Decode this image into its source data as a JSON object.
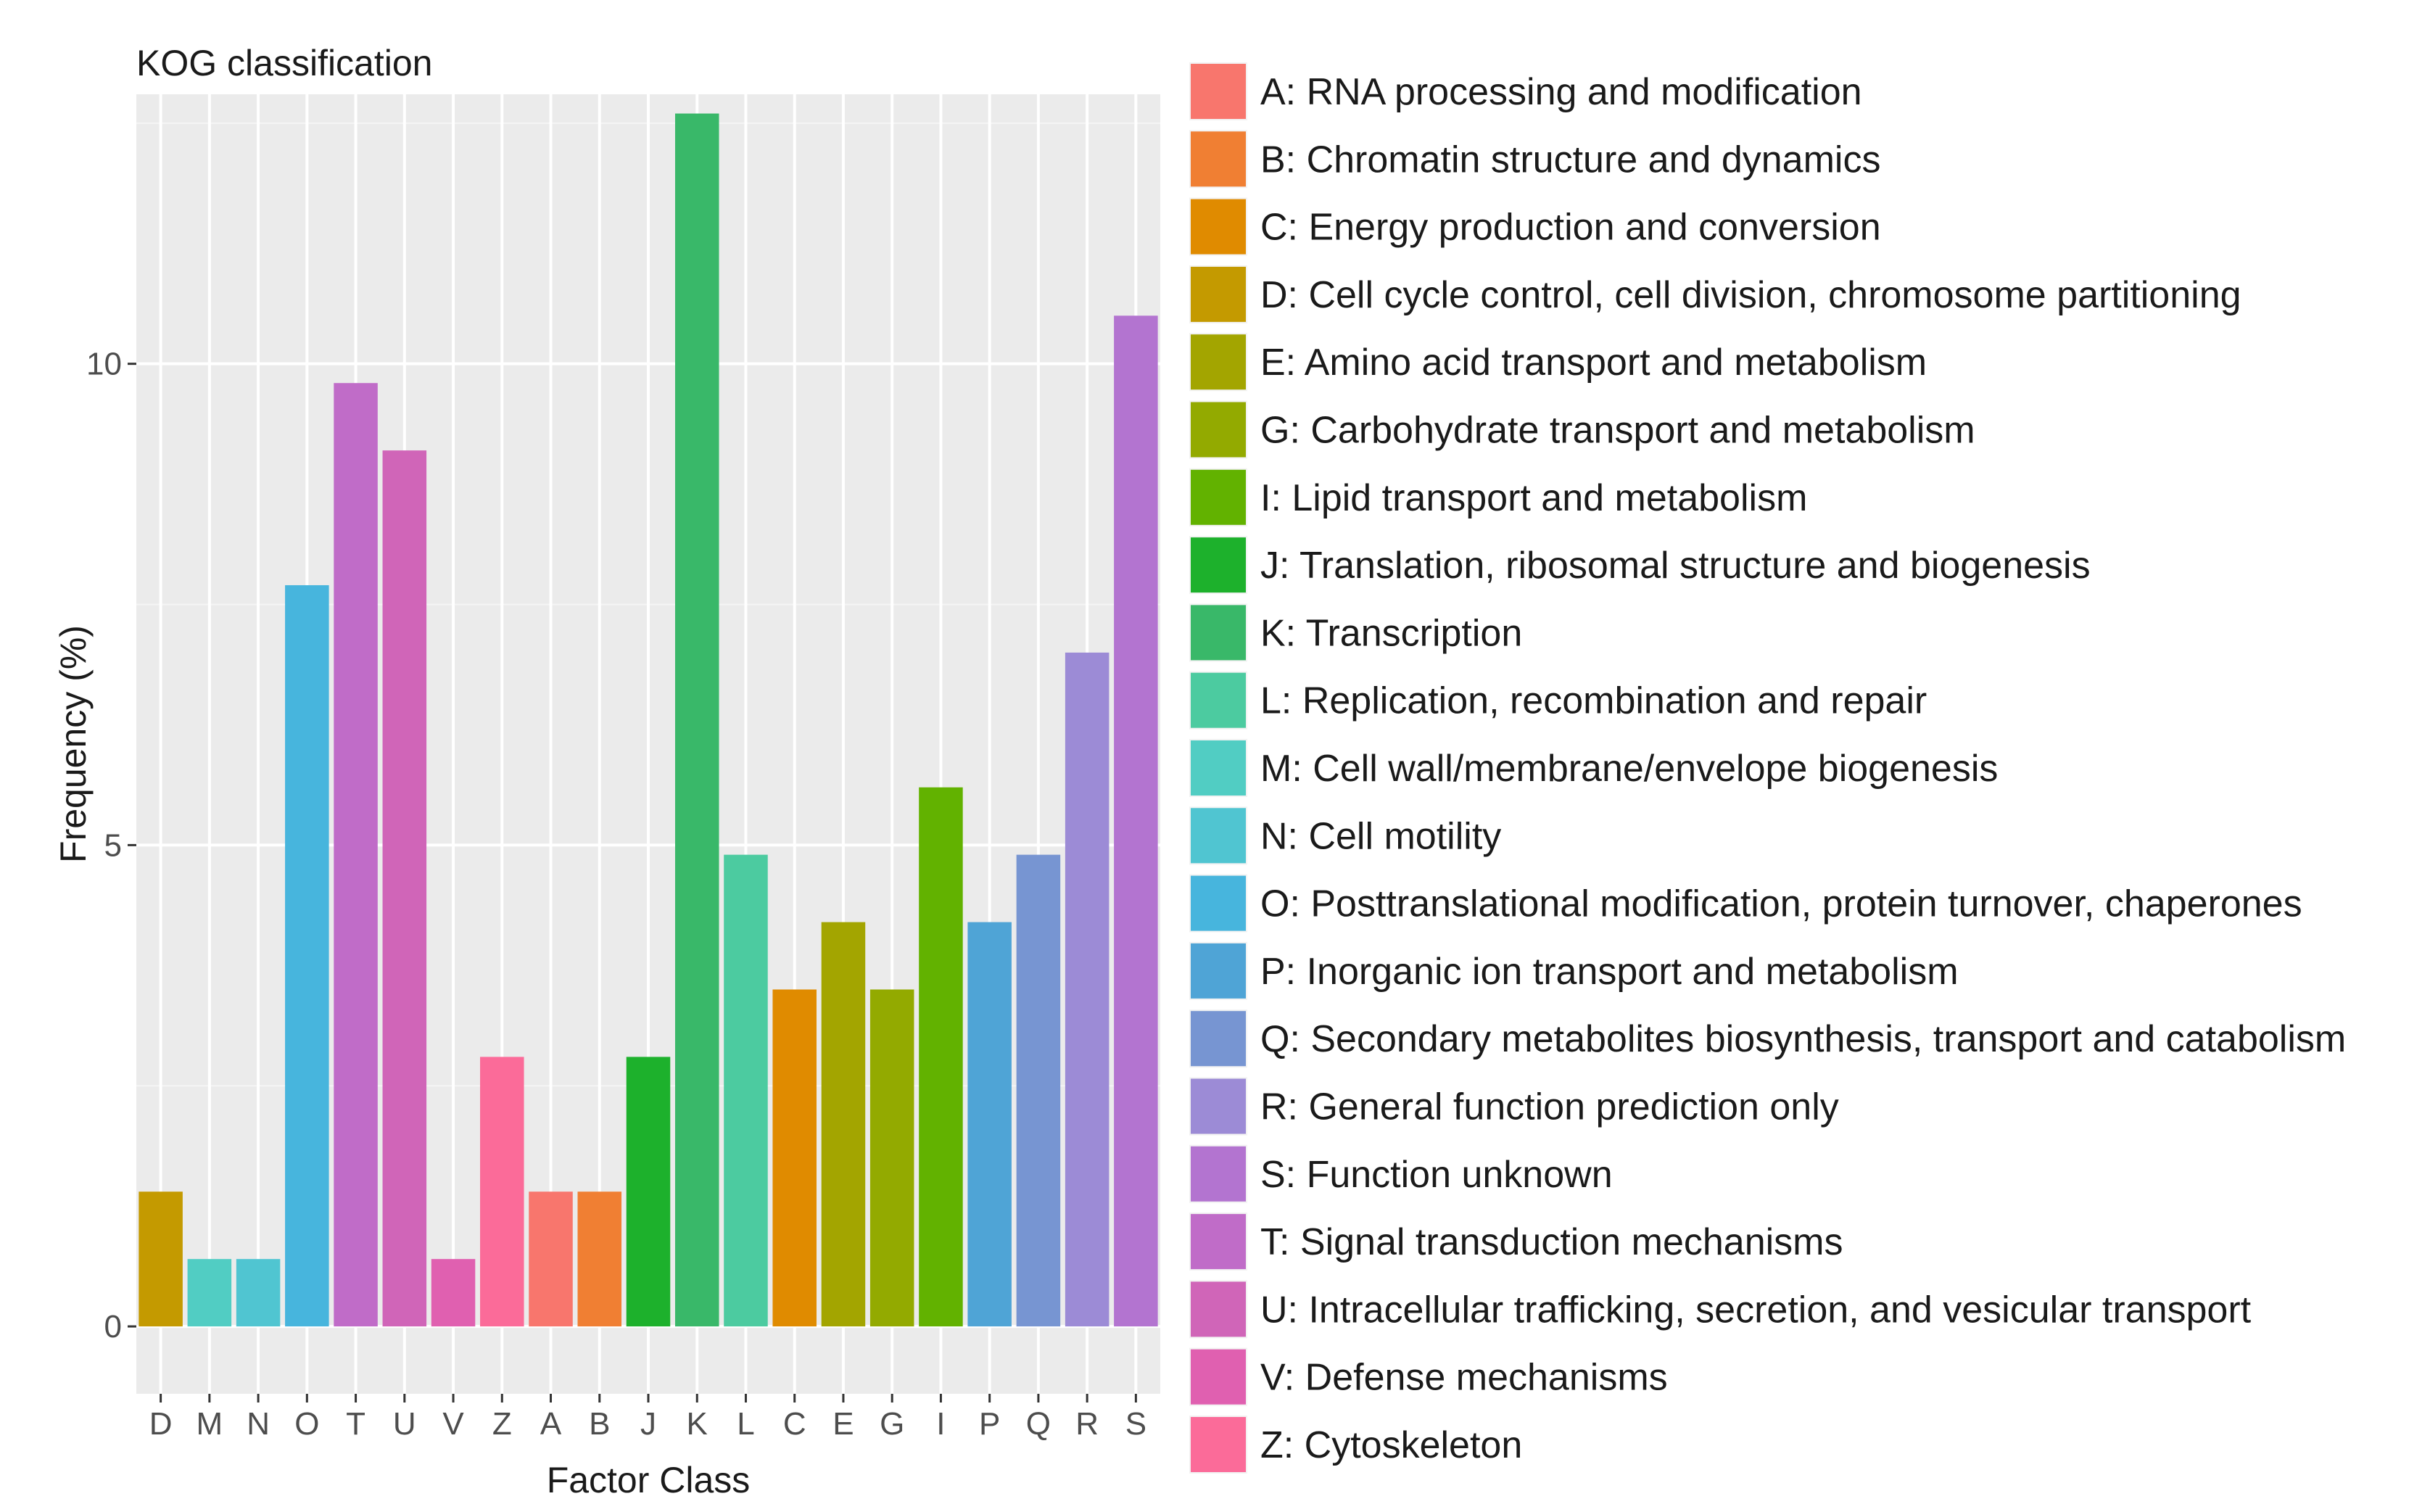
{
  "chart_data": {
    "type": "bar",
    "title": "KOG classification",
    "xlabel": "Factor Class",
    "ylabel": "Frequency (%)",
    "ylim": [
      -0.7,
      12.8
    ],
    "yticks": [
      0,
      5,
      10
    ],
    "grid": true,
    "legend_position": "right",
    "categories": [
      "D",
      "M",
      "N",
      "O",
      "T",
      "U",
      "V",
      "Z",
      "A",
      "B",
      "J",
      "K",
      "L",
      "C",
      "E",
      "G",
      "I",
      "P",
      "Q",
      "R",
      "S"
    ],
    "values": [
      1.4,
      0.7,
      0.7,
      7.7,
      9.8,
      9.1,
      0.7,
      2.8,
      1.4,
      1.4,
      2.8,
      12.6,
      4.9,
      3.5,
      4.2,
      3.5,
      5.6,
      4.2,
      4.9,
      7.0,
      10.5
    ],
    "colors": {
      "A": "#F8766D",
      "B": "#F07F33",
      "C": "#E08B00",
      "D": "#C49A00",
      "E": "#A3A500",
      "G": "#93AA00",
      "I": "#62B200",
      "J": "#1DB12C",
      "K": "#39B869",
      "L": "#4CCBA0",
      "M": "#51CDC3",
      "N": "#50C5D1",
      "O": "#47B5DD",
      "P": "#4FA4D6",
      "Q": "#7795D2",
      "R": "#9C8BD6",
      "S": "#B374D0",
      "T": "#C06CC8",
      "U": "#D065B8",
      "V": "#E060B0",
      "Z": "#FB6B99"
    },
    "legend": [
      {
        "key": "A",
        "label": "A: RNA processing and modification"
      },
      {
        "key": "B",
        "label": "B: Chromatin structure and dynamics"
      },
      {
        "key": "C",
        "label": "C: Energy production and conversion"
      },
      {
        "key": "D",
        "label": "D: Cell cycle control, cell division, chromosome partitioning"
      },
      {
        "key": "E",
        "label": "E: Amino acid transport and metabolism"
      },
      {
        "key": "G",
        "label": "G: Carbohydrate transport and metabolism"
      },
      {
        "key": "I",
        "label": "I: Lipid transport and metabolism"
      },
      {
        "key": "J",
        "label": "J: Translation, ribosomal structure and biogenesis"
      },
      {
        "key": "K",
        "label": "K: Transcription"
      },
      {
        "key": "L",
        "label": "L: Replication, recombination and repair"
      },
      {
        "key": "M",
        "label": "M: Cell wall/membrane/envelope biogenesis"
      },
      {
        "key": "N",
        "label": "N: Cell motility"
      },
      {
        "key": "O",
        "label": "O: Posttranslational modification, protein turnover, chaperones"
      },
      {
        "key": "P",
        "label": "P: Inorganic ion transport and metabolism"
      },
      {
        "key": "Q",
        "label": "Q: Secondary metabolites biosynthesis, transport and catabolism"
      },
      {
        "key": "R",
        "label": "R: General function prediction only"
      },
      {
        "key": "S",
        "label": "S: Function unknown"
      },
      {
        "key": "T",
        "label": "T: Signal transduction mechanisms"
      },
      {
        "key": "U",
        "label": "U: Intracellular trafficking, secretion, and vesicular transport"
      },
      {
        "key": "V",
        "label": "V: Defense mechanisms"
      },
      {
        "key": "Z",
        "label": "Z: Cytoskeleton"
      }
    ]
  }
}
